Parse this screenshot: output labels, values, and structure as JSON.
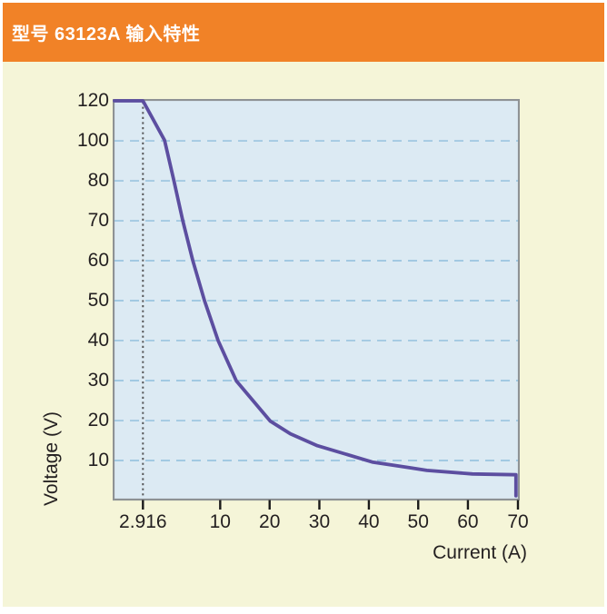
{
  "header": {
    "title": "型号 63123A 输入特性",
    "bg_color": "#F18227",
    "text_color": "#FFFFFF"
  },
  "panel": {
    "bg_color": "#F5F5D8"
  },
  "chart_data": {
    "type": "line",
    "title": "型号 63123A 输入特性",
    "xlabel": "Current (A)",
    "ylabel": "Voltage (V)",
    "legend": "none",
    "grid": "horizontal dashed",
    "x_ticks": {
      "labels": [
        "2.916",
        "10",
        "20",
        "30",
        "40",
        "50",
        "60",
        "70"
      ],
      "fractions": [
        0.0705,
        0.262,
        0.3845,
        0.5078,
        0.6305,
        0.7528,
        0.876,
        1.0
      ]
    },
    "y_ticks": {
      "labels": [
        "120",
        "100",
        "80",
        "70",
        "60",
        "50",
        "40",
        "30",
        "20",
        "10"
      ],
      "fractions": [
        0,
        0.1005,
        0.2011,
        0.3014,
        0.4018,
        0.5023,
        0.6027,
        0.7032,
        0.8037,
        0.9041
      ]
    },
    "marker_line": {
      "at_x_label": "2.916",
      "fraction": 0.0705,
      "style": "dotted",
      "color": "#58595B"
    },
    "key_points": [
      {
        "current_a": 2.916,
        "voltage_v": 120
      },
      {
        "current_a": 70,
        "voltage_v": 7
      }
    ],
    "curve_shape": "constant-power hyperbola: flat at 120 V until 2.916 A, steep fall, asymptotic tail near 7 V, vertical drop at 70 A",
    "series": [
      {
        "name": "input-characteristic",
        "color": "#5C4EA0",
        "trace": [
          [
            0.0,
            0.0
          ],
          [
            0.0705,
            0.0
          ],
          [
            0.124,
            0.099
          ],
          [
            0.147,
            0.2
          ],
          [
            0.169,
            0.3
          ],
          [
            0.194,
            0.401
          ],
          [
            0.223,
            0.502
          ],
          [
            0.257,
            0.603
          ],
          [
            0.302,
            0.704
          ],
          [
            0.386,
            0.805
          ],
          [
            0.436,
            0.837
          ],
          [
            0.503,
            0.867
          ],
          [
            0.639,
            0.908
          ],
          [
            0.729,
            0.922
          ],
          [
            0.774,
            0.929
          ],
          [
            0.887,
            0.938
          ],
          [
            0.995,
            0.94
          ],
          [
            0.995,
            0.993
          ]
        ]
      }
    ],
    "colors": {
      "plot_bg": "#DCEAF3",
      "plot_border": "#8E9294",
      "gridline": "#8FBEDC",
      "axis_tick": "#1A1A1A",
      "text": "#231F20"
    }
  }
}
